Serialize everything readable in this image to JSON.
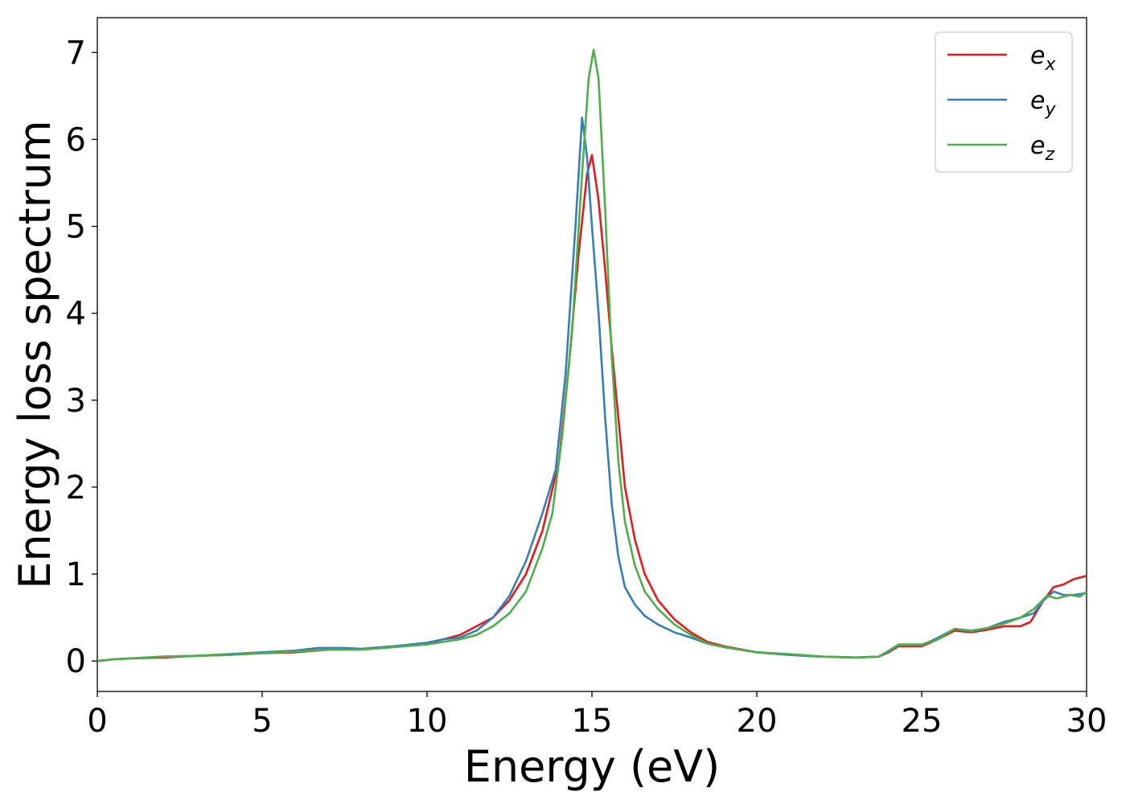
{
  "chart_data": {
    "type": "line",
    "title": "",
    "xlabel": "Energy (eV)",
    "ylabel": "Energy loss spectrum",
    "xlim": [
      0,
      30
    ],
    "ylim": [
      -0.35,
      7.4
    ],
    "xticks": [
      0,
      5,
      10,
      15,
      20,
      25,
      30
    ],
    "yticks": [
      0,
      1,
      2,
      3,
      4,
      5,
      6,
      7
    ],
    "grid": false,
    "legend_position": "top-right",
    "series": [
      {
        "name": "e",
        "subscript": "x",
        "color": "#e41a1c",
        "points": [
          [
            0,
            0.0
          ],
          [
            0.5,
            0.02
          ],
          [
            1,
            0.03
          ],
          [
            2,
            0.04
          ],
          [
            3,
            0.06
          ],
          [
            4,
            0.07
          ],
          [
            5,
            0.09
          ],
          [
            6,
            0.1
          ],
          [
            7,
            0.13
          ],
          [
            7.5,
            0.14
          ],
          [
            8,
            0.14
          ],
          [
            9,
            0.17
          ],
          [
            10,
            0.2
          ],
          [
            10.5,
            0.25
          ],
          [
            11,
            0.3
          ],
          [
            11.5,
            0.4
          ],
          [
            12,
            0.5
          ],
          [
            12.5,
            0.7
          ],
          [
            13,
            1.0
          ],
          [
            13.5,
            1.5
          ],
          [
            14,
            2.3
          ],
          [
            14.3,
            3.4
          ],
          [
            14.6,
            4.7
          ],
          [
            14.85,
            5.6
          ],
          [
            15.0,
            5.82
          ],
          [
            15.2,
            5.3
          ],
          [
            15.4,
            4.5
          ],
          [
            15.6,
            3.6
          ],
          [
            15.8,
            2.8
          ],
          [
            16,
            2.0
          ],
          [
            16.3,
            1.4
          ],
          [
            16.6,
            1.0
          ],
          [
            17,
            0.7
          ],
          [
            17.5,
            0.48
          ],
          [
            18,
            0.33
          ],
          [
            18.5,
            0.22
          ],
          [
            19,
            0.17
          ],
          [
            20,
            0.1
          ],
          [
            21,
            0.07
          ],
          [
            22,
            0.05
          ],
          [
            23,
            0.04
          ],
          [
            23.7,
            0.05
          ],
          [
            24,
            0.1
          ],
          [
            24.3,
            0.17
          ],
          [
            25,
            0.17
          ],
          [
            25.5,
            0.25
          ],
          [
            26,
            0.35
          ],
          [
            26.5,
            0.33
          ],
          [
            27,
            0.36
          ],
          [
            27.5,
            0.4
          ],
          [
            28,
            0.4
          ],
          [
            28.3,
            0.45
          ],
          [
            28.7,
            0.7
          ],
          [
            29,
            0.85
          ],
          [
            29.3,
            0.88
          ],
          [
            29.6,
            0.94
          ],
          [
            30,
            0.98
          ]
        ]
      },
      {
        "name": "e",
        "subscript": "y",
        "color": "#377eb8",
        "points": [
          [
            0,
            0.0
          ],
          [
            0.5,
            0.02
          ],
          [
            1,
            0.03
          ],
          [
            2,
            0.05
          ],
          [
            3,
            0.06
          ],
          [
            4,
            0.08
          ],
          [
            5,
            0.1
          ],
          [
            6,
            0.12
          ],
          [
            6.7,
            0.15
          ],
          [
            7.5,
            0.15
          ],
          [
            8,
            0.14
          ],
          [
            9,
            0.17
          ],
          [
            10,
            0.21
          ],
          [
            10.5,
            0.25
          ],
          [
            11,
            0.27
          ],
          [
            11.5,
            0.35
          ],
          [
            12,
            0.5
          ],
          [
            12.5,
            0.75
          ],
          [
            13,
            1.15
          ],
          [
            13.5,
            1.7
          ],
          [
            13.9,
            2.2
          ],
          [
            14.2,
            3.3
          ],
          [
            14.5,
            5.0
          ],
          [
            14.7,
            6.25
          ],
          [
            14.85,
            5.8
          ],
          [
            15.0,
            5.0
          ],
          [
            15.2,
            4.0
          ],
          [
            15.4,
            2.8
          ],
          [
            15.6,
            1.8
          ],
          [
            15.8,
            1.2
          ],
          [
            16,
            0.85
          ],
          [
            16.3,
            0.65
          ],
          [
            16.6,
            0.52
          ],
          [
            17,
            0.42
          ],
          [
            17.5,
            0.33
          ],
          [
            18,
            0.27
          ],
          [
            18.5,
            0.2
          ],
          [
            19,
            0.16
          ],
          [
            20,
            0.1
          ],
          [
            21,
            0.07
          ],
          [
            22,
            0.05
          ],
          [
            23,
            0.04
          ],
          [
            23.7,
            0.05
          ],
          [
            24,
            0.11
          ],
          [
            24.3,
            0.18
          ],
          [
            25,
            0.18
          ],
          [
            25.5,
            0.27
          ],
          [
            26,
            0.37
          ],
          [
            26.5,
            0.34
          ],
          [
            27,
            0.38
          ],
          [
            27.5,
            0.45
          ],
          [
            28,
            0.5
          ],
          [
            28.4,
            0.55
          ],
          [
            28.7,
            0.7
          ],
          [
            29,
            0.8
          ],
          [
            29.3,
            0.76
          ],
          [
            29.6,
            0.76
          ],
          [
            30,
            0.78
          ]
        ]
      },
      {
        "name": "e",
        "subscript": "z",
        "color": "#4daf4a",
        "points": [
          [
            0,
            0.0
          ],
          [
            0.5,
            0.02
          ],
          [
            1,
            0.03
          ],
          [
            2,
            0.05
          ],
          [
            3,
            0.06
          ],
          [
            4,
            0.07
          ],
          [
            5,
            0.09
          ],
          [
            6,
            0.11
          ],
          [
            7,
            0.13
          ],
          [
            8,
            0.13
          ],
          [
            9,
            0.16
          ],
          [
            10,
            0.19
          ],
          [
            10.5,
            0.22
          ],
          [
            11,
            0.25
          ],
          [
            11.5,
            0.3
          ],
          [
            12,
            0.4
          ],
          [
            12.5,
            0.55
          ],
          [
            13,
            0.8
          ],
          [
            13.5,
            1.3
          ],
          [
            13.8,
            1.7
          ],
          [
            14.1,
            2.6
          ],
          [
            14.4,
            3.8
          ],
          [
            14.7,
            5.6
          ],
          [
            14.9,
            6.7
          ],
          [
            15.05,
            7.03
          ],
          [
            15.2,
            6.7
          ],
          [
            15.4,
            5.2
          ],
          [
            15.6,
            3.5
          ],
          [
            15.8,
            2.3
          ],
          [
            16,
            1.6
          ],
          [
            16.3,
            1.1
          ],
          [
            16.6,
            0.8
          ],
          [
            17,
            0.6
          ],
          [
            17.5,
            0.42
          ],
          [
            18,
            0.3
          ],
          [
            18.5,
            0.2
          ],
          [
            19,
            0.16
          ],
          [
            20,
            0.1
          ],
          [
            21,
            0.08
          ],
          [
            22,
            0.05
          ],
          [
            23,
            0.04
          ],
          [
            23.7,
            0.05
          ],
          [
            24,
            0.12
          ],
          [
            24.3,
            0.19
          ],
          [
            25,
            0.19
          ],
          [
            25.5,
            0.25
          ],
          [
            26,
            0.37
          ],
          [
            26.5,
            0.35
          ],
          [
            27,
            0.38
          ],
          [
            27.5,
            0.43
          ],
          [
            28,
            0.5
          ],
          [
            28.4,
            0.6
          ],
          [
            28.8,
            0.75
          ],
          [
            29.1,
            0.72
          ],
          [
            29.5,
            0.76
          ],
          [
            29.8,
            0.74
          ],
          [
            30,
            0.8
          ]
        ]
      }
    ]
  }
}
